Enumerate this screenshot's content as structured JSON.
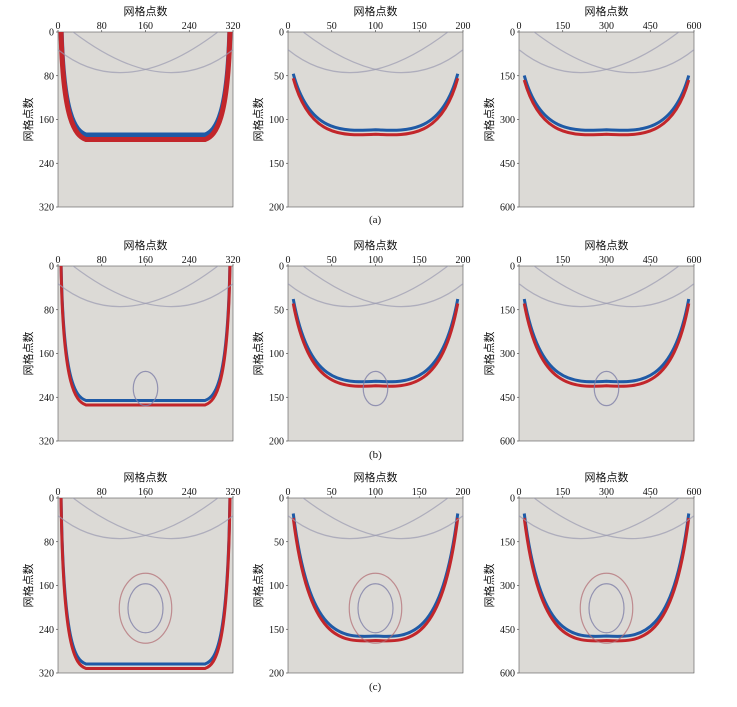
{
  "figure": {
    "axis_label": "网格点数",
    "row_captions": [
      "(a)",
      "(b)",
      "(c)"
    ],
    "column_ticks": [
      [
        0,
        80,
        160,
        240,
        320
      ],
      [
        0,
        50,
        100,
        150,
        200
      ],
      [
        0,
        150,
        300,
        450,
        600
      ]
    ]
  },
  "colors": {
    "background": "#dcdad6",
    "positive": "#c2262b",
    "negative": "#1f5aa6"
  },
  "chart_data": {
    "type": "heatmap",
    "rows": 3,
    "columns": 3,
    "grid": false,
    "axes": [
      {
        "xlim": [
          0,
          320
        ],
        "ylim": [
          0,
          320
        ]
      },
      {
        "xlim": [
          0,
          200
        ],
        "ylim": [
          0,
          200
        ]
      },
      {
        "xlim": [
          0,
          600
        ],
        "ylim": [
          0,
          600
        ]
      }
    ]
  }
}
